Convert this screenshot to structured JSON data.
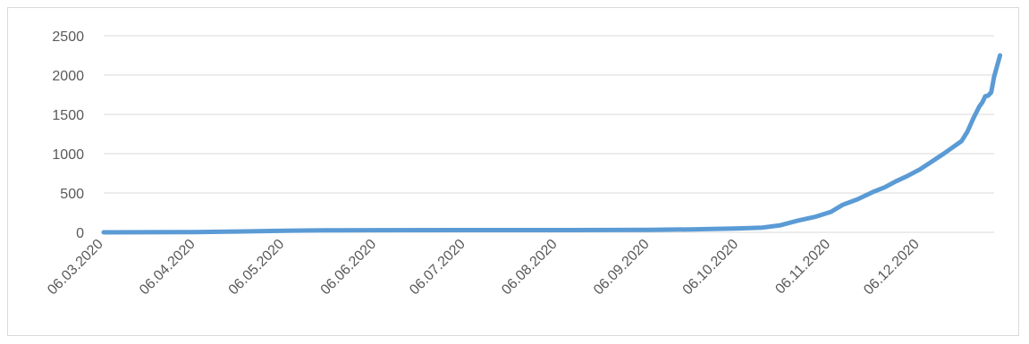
{
  "chart_data": {
    "type": "line",
    "title": "",
    "xlabel": "",
    "ylabel": "",
    "ylim": [
      0,
      2500
    ],
    "yticks": [
      0,
      500,
      1000,
      1500,
      2000,
      2500
    ],
    "xlim": [
      "2020-03-06",
      "2020-12-31"
    ],
    "xtick_labels": [
      "06.03.2020",
      "06.04.2020",
      "06.05.2020",
      "06.06.2020",
      "06.07.2020",
      "06.08.2020",
      "06.09.2020",
      "06.10.2020",
      "06.11.2020",
      "06.12.2020"
    ],
    "grid": true,
    "legend": "none",
    "series": [
      {
        "color": "#5b9bd5",
        "points": [
          [
            "2020-03-06",
            0
          ],
          [
            "2020-03-20",
            1
          ],
          [
            "2020-04-06",
            3
          ],
          [
            "2020-04-20",
            10
          ],
          [
            "2020-05-06",
            20
          ],
          [
            "2020-05-20",
            25
          ],
          [
            "2020-06-06",
            27
          ],
          [
            "2020-07-06",
            28
          ],
          [
            "2020-08-06",
            28
          ],
          [
            "2020-09-06",
            32
          ],
          [
            "2020-09-20",
            37
          ],
          [
            "2020-10-06",
            50
          ],
          [
            "2020-10-14",
            60
          ],
          [
            "2020-10-20",
            90
          ],
          [
            "2020-10-26",
            150
          ],
          [
            "2020-11-01",
            200
          ],
          [
            "2020-11-06",
            260
          ],
          [
            "2020-11-10",
            350
          ],
          [
            "2020-11-15",
            420
          ],
          [
            "2020-11-20",
            510
          ],
          [
            "2020-11-24",
            570
          ],
          [
            "2020-11-28",
            650
          ],
          [
            "2020-12-02",
            720
          ],
          [
            "2020-12-06",
            800
          ],
          [
            "2020-12-10",
            900
          ],
          [
            "2020-12-14",
            1000
          ],
          [
            "2020-12-17",
            1080
          ],
          [
            "2020-12-20",
            1160
          ],
          [
            "2020-12-22",
            1280
          ],
          [
            "2020-12-24",
            1450
          ],
          [
            "2020-12-26",
            1600
          ],
          [
            "2020-12-27",
            1650
          ],
          [
            "2020-12-28",
            1730
          ],
          [
            "2020-12-29",
            1740
          ],
          [
            "2020-12-30",
            1780
          ],
          [
            "2020-12-31",
            1980
          ],
          [
            "2021-01-02",
            2250
          ]
        ]
      }
    ]
  }
}
